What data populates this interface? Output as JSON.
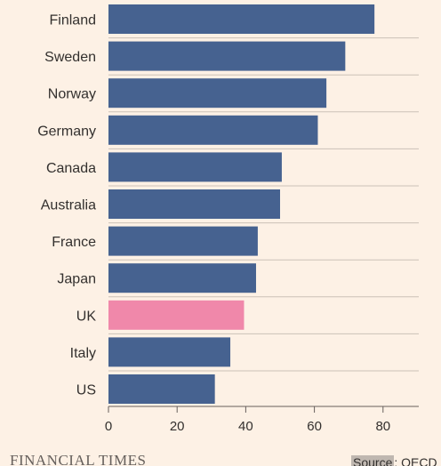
{
  "chart_data": {
    "type": "bar",
    "orientation": "horizontal",
    "categories": [
      "Finland",
      "Sweden",
      "Norway",
      "Germany",
      "Canada",
      "Australia",
      "France",
      "Japan",
      "UK",
      "Italy",
      "US"
    ],
    "values": [
      77.5,
      69,
      63.5,
      61,
      50.5,
      50,
      43.5,
      43,
      39.5,
      35.5,
      31
    ],
    "highlight": "UK",
    "xticks": [
      0,
      20,
      40,
      60,
      80
    ],
    "xlim": [
      0,
      90
    ],
    "grid": "horizontal separators",
    "colors": {
      "bar": "#466290",
      "highlight": "#f088aa",
      "grid": "#ccc1b7",
      "axis": "#66605c",
      "background": "#fdf1e5"
    }
  },
  "footer": {
    "brand": "FINANCIAL TIMES",
    "source_key": "Source",
    "source_value": ": OECD"
  }
}
